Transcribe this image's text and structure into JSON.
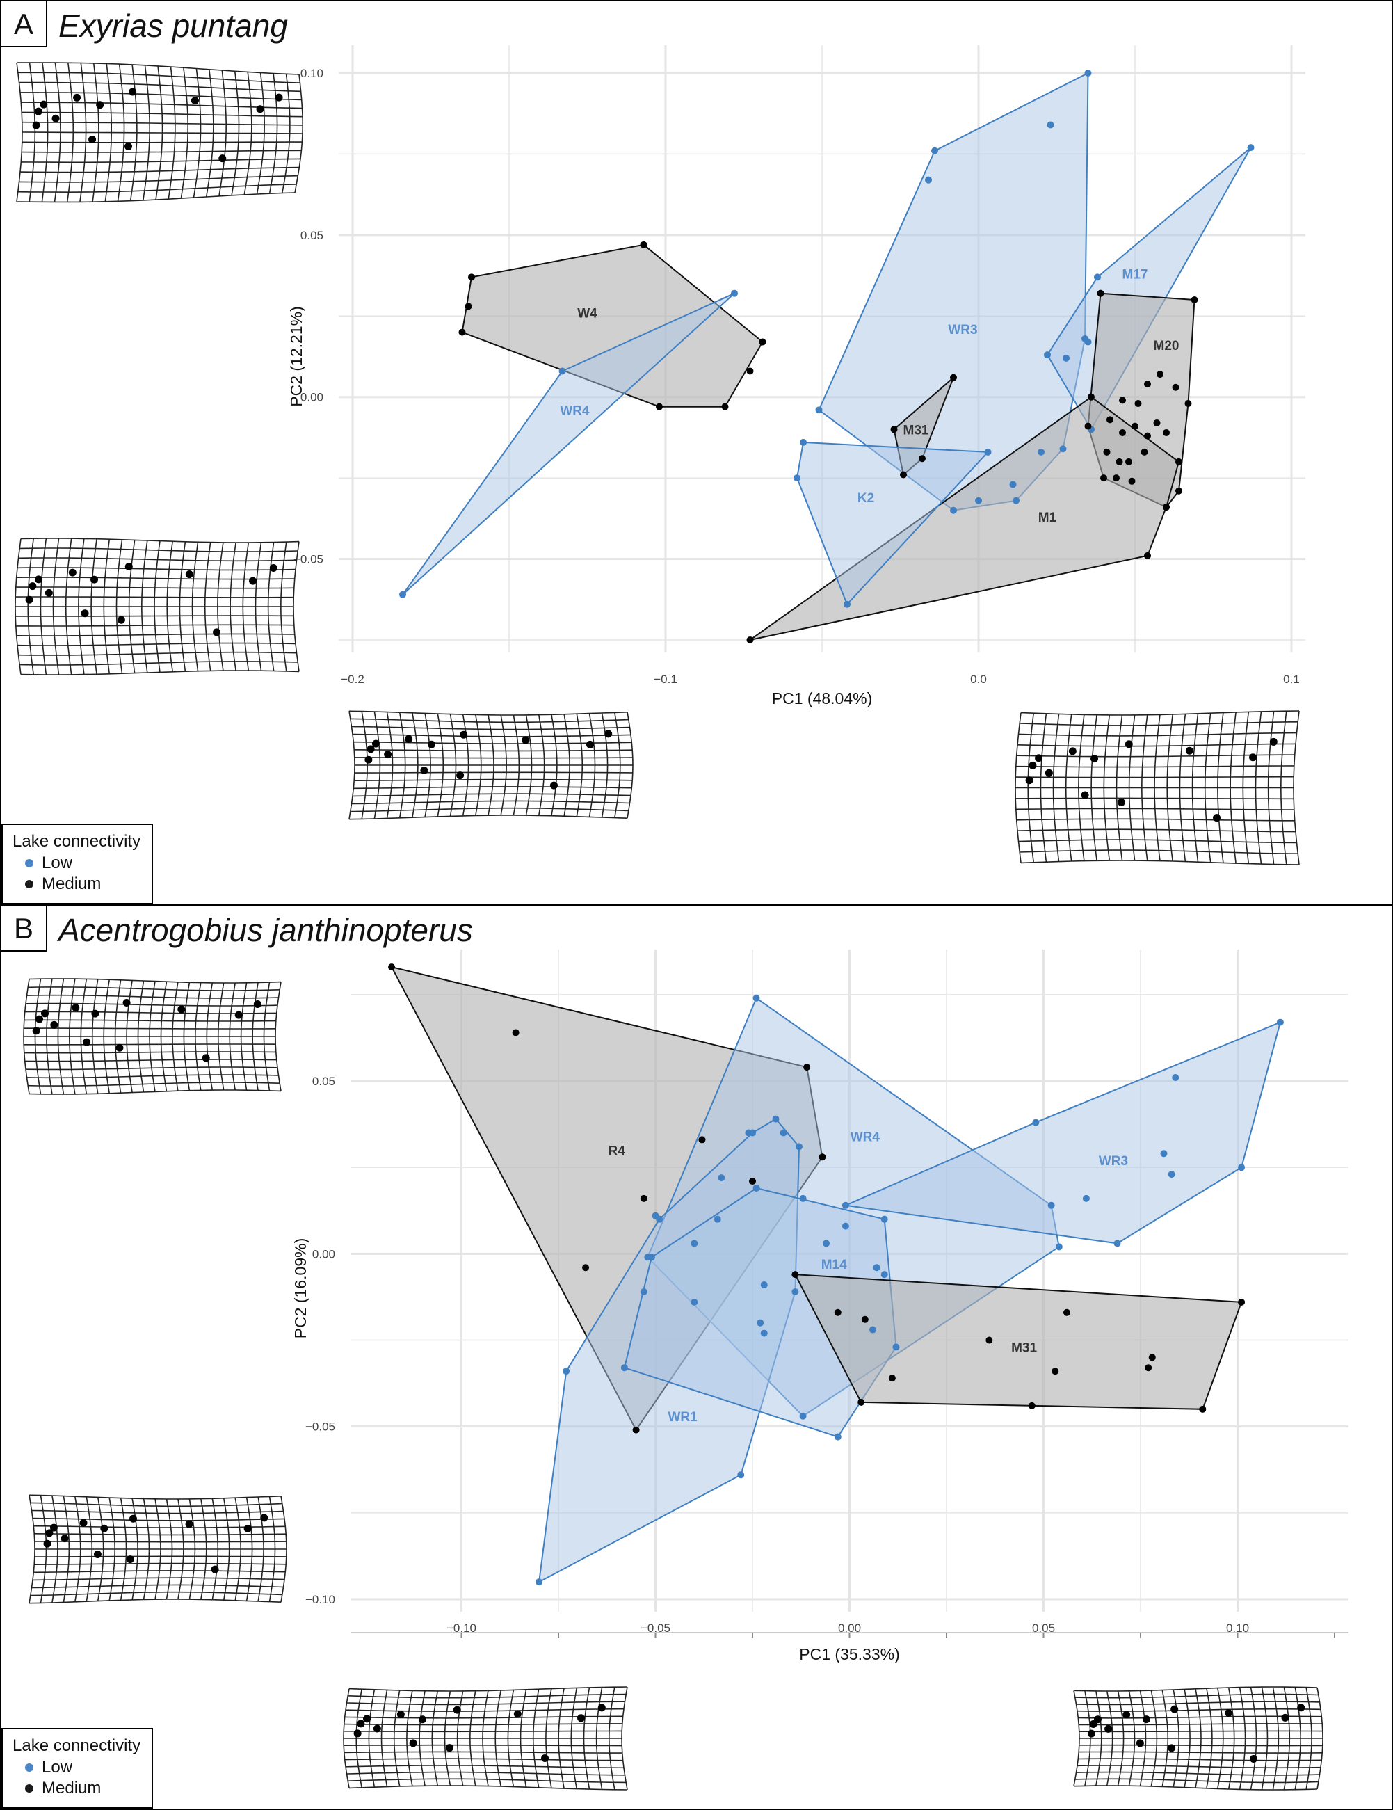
{
  "legend": {
    "title": "Lake connectivity",
    "items": [
      {
        "label": "Low",
        "color": "#4a86c5"
      },
      {
        "label": "Medium",
        "color": "#1a1a1a"
      }
    ]
  },
  "colors": {
    "low_fill": "#a9c6e6",
    "low_stroke": "#3f7fc2",
    "low_label": "#5b8fcd",
    "med_fill": "#b0b0b0",
    "med_stroke": "#111111",
    "med_label": "#333333",
    "grid": "#e5e5e5",
    "tick_text": "#444444"
  },
  "panels": [
    {
      "letter": "A",
      "species": "Exyrias puntang"
    },
    {
      "letter": "B",
      "species": "Acentrogobius janthinopterus"
    }
  ],
  "chart_data": [
    {
      "type": "scatter",
      "panel": "A",
      "title": "Exyrias puntang",
      "xlabel": "PC1 (48.04%)",
      "ylabel": "PC2 (12.21%)",
      "xlim": [
        -0.2,
        0.1
      ],
      "ylim": [
        -0.075,
        0.1
      ],
      "xticks": [
        -0.2,
        -0.1,
        0.0,
        0.1
      ],
      "xtick_labels": [
        "−0.2",
        "−0.1",
        "0.0",
        "0.1"
      ],
      "yticks": [
        -0.05,
        0.0,
        0.05,
        0.1
      ],
      "ytick_labels": [
        "−0.05",
        "0.00",
        "0.05",
        "0.10"
      ],
      "grid": true,
      "legend_position": "bottom-left",
      "groups": [
        {
          "name": "W4",
          "connectivity": "Medium",
          "label_at": [
            -0.125,
            0.026
          ],
          "hull": [
            [
              -0.107,
              0.047
            ],
            [
              -0.069,
              0.017
            ],
            [
              -0.081,
              -0.003
            ],
            [
              -0.102,
              -0.003
            ],
            [
              -0.165,
              0.02
            ],
            [
              -0.162,
              0.037
            ]
          ],
          "points": [
            [
              -0.107,
              0.047
            ],
            [
              -0.069,
              0.017
            ],
            [
              -0.081,
              -0.003
            ],
            [
              -0.102,
              -0.003
            ],
            [
              -0.165,
              0.02
            ],
            [
              -0.162,
              0.037
            ],
            [
              -0.163,
              0.028
            ],
            [
              -0.073,
              0.008
            ]
          ]
        },
        {
          "name": "WR4",
          "connectivity": "Low",
          "label_at": [
            -0.129,
            -0.004
          ],
          "hull": [
            [
              -0.078,
              0.032
            ],
            [
              -0.133,
              0.008
            ],
            [
              -0.184,
              -0.061
            ]
          ],
          "points": [
            [
              -0.078,
              0.032
            ],
            [
              -0.133,
              0.008
            ],
            [
              -0.184,
              -0.061
            ]
          ]
        },
        {
          "name": "WR3",
          "connectivity": "Low",
          "label_at": [
            -0.005,
            0.021
          ],
          "hull": [
            [
              0.035,
              0.1
            ],
            [
              0.034,
              0.018
            ],
            [
              0.027,
              -0.016
            ],
            [
              0.012,
              -0.032
            ],
            [
              -0.008,
              -0.035
            ],
            [
              -0.051,
              -0.004
            ],
            [
              -0.014,
              0.076
            ]
          ],
          "points": [
            [
              0.035,
              0.1
            ],
            [
              0.034,
              0.018
            ],
            [
              0.027,
              -0.016
            ],
            [
              0.012,
              -0.032
            ],
            [
              -0.008,
              -0.035
            ],
            [
              -0.051,
              -0.004
            ],
            [
              -0.014,
              0.076
            ],
            [
              0.023,
              0.084
            ],
            [
              -0.016,
              0.067
            ],
            [
              0.028,
              0.012
            ],
            [
              0.02,
              -0.017
            ],
            [
              0.011,
              -0.027
            ],
            [
              0.0,
              -0.032
            ]
          ]
        },
        {
          "name": "M17",
          "connectivity": "Low",
          "label_at": [
            0.05,
            0.038
          ],
          "hull": [
            [
              0.087,
              0.077
            ],
            [
              0.036,
              -0.01
            ],
            [
              0.022,
              0.013
            ],
            [
              0.038,
              0.037
            ]
          ],
          "points": [
            [
              0.087,
              0.077
            ],
            [
              0.036,
              -0.01
            ],
            [
              0.022,
              0.013
            ],
            [
              0.038,
              0.037
            ],
            [
              0.035,
              0.017
            ]
          ]
        },
        {
          "name": "M20",
          "connectivity": "Medium",
          "label_at": [
            0.06,
            0.016
          ],
          "hull": [
            [
              0.069,
              0.03
            ],
            [
              0.067,
              -0.002
            ],
            [
              0.064,
              -0.029
            ],
            [
              0.06,
              -0.034
            ],
            [
              0.04,
              -0.025
            ],
            [
              0.035,
              -0.009
            ],
            [
              0.039,
              0.032
            ]
          ],
          "points": [
            [
              0.069,
              0.03
            ],
            [
              0.067,
              -0.002
            ],
            [
              0.064,
              -0.029
            ],
            [
              0.06,
              -0.034
            ],
            [
              0.04,
              -0.025
            ],
            [
              0.035,
              -0.009
            ],
            [
              0.039,
              0.032
            ],
            [
              0.058,
              0.007
            ],
            [
              0.063,
              0.003
            ],
            [
              0.054,
              0.004
            ],
            [
              0.046,
              -0.001
            ],
            [
              0.051,
              -0.002
            ],
            [
              0.042,
              -0.007
            ],
            [
              0.057,
              -0.008
            ],
            [
              0.05,
              -0.009
            ],
            [
              0.046,
              -0.011
            ],
            [
              0.054,
              -0.012
            ],
            [
              0.06,
              -0.011
            ],
            [
              0.041,
              -0.017
            ],
            [
              0.045,
              -0.02
            ],
            [
              0.048,
              -0.02
            ],
            [
              0.053,
              -0.017
            ],
            [
              0.044,
              -0.025
            ],
            [
              0.049,
              -0.026
            ]
          ]
        },
        {
          "name": "M1",
          "connectivity": "Medium",
          "label_at": [
            0.022,
            -0.037
          ],
          "hull": [
            [
              0.036,
              0.0
            ],
            [
              0.064,
              -0.02
            ],
            [
              0.06,
              -0.034
            ],
            [
              0.054,
              -0.049
            ],
            [
              -0.073,
              -0.075
            ]
          ],
          "points": [
            [
              0.036,
              0.0
            ],
            [
              0.064,
              -0.02
            ],
            [
              0.06,
              -0.034
            ],
            [
              0.054,
              -0.049
            ],
            [
              -0.073,
              -0.075
            ]
          ]
        },
        {
          "name": "M31",
          "connectivity": "Medium",
          "label_at": [
            -0.02,
            -0.01
          ],
          "hull": [
            [
              -0.008,
              0.006
            ],
            [
              -0.018,
              -0.019
            ],
            [
              -0.024,
              -0.024
            ],
            [
              -0.027,
              -0.01
            ]
          ],
          "points": [
            [
              -0.008,
              0.006
            ],
            [
              -0.018,
              -0.019
            ],
            [
              -0.024,
              -0.024
            ],
            [
              -0.027,
              -0.01
            ]
          ]
        },
        {
          "name": "K2",
          "connectivity": "Low",
          "label_at": [
            -0.036,
            -0.031
          ],
          "hull": [
            [
              0.003,
              -0.017
            ],
            [
              -0.042,
              -0.064
            ],
            [
              -0.058,
              -0.025
            ],
            [
              -0.056,
              -0.014
            ]
          ],
          "points": [
            [
              0.003,
              -0.017
            ],
            [
              -0.042,
              -0.064
            ],
            [
              -0.058,
              -0.025
            ],
            [
              -0.056,
              -0.014
            ]
          ]
        }
      ]
    },
    {
      "type": "scatter",
      "panel": "B",
      "title": "Acentrogobius janthinopterus",
      "xlabel": "PC1 (35.33%)",
      "ylabel": "PC2 (16.09%)",
      "xlim": [
        -0.125,
        0.125
      ],
      "ylim": [
        -0.1,
        0.08
      ],
      "xticks": [
        -0.1,
        -0.05,
        0.0,
        0.05,
        0.1
      ],
      "xtick_labels": [
        "−0.10",
        "−0.05",
        "0.00",
        "0.05",
        "0.10"
      ],
      "yticks": [
        -0.1,
        -0.05,
        0.0,
        0.05
      ],
      "ytick_labels": [
        "−0.10",
        "−0.05",
        "0.00",
        "0.05"
      ],
      "grid": true,
      "legend_position": "bottom-left",
      "groups": [
        {
          "name": "R4",
          "connectivity": "Medium",
          "label_at": [
            -0.06,
            0.03
          ],
          "hull": [
            [
              -0.118,
              0.083
            ],
            [
              -0.011,
              0.054
            ],
            [
              -0.007,
              0.028
            ],
            [
              -0.055,
              -0.051
            ]
          ],
          "points": [
            [
              -0.118,
              0.083
            ],
            [
              -0.011,
              0.054
            ],
            [
              -0.007,
              0.028
            ],
            [
              -0.055,
              -0.051
            ],
            [
              -0.086,
              0.064
            ],
            [
              -0.053,
              0.016
            ],
            [
              -0.068,
              -0.004
            ],
            [
              -0.038,
              0.033
            ],
            [
              -0.025,
              0.021
            ]
          ]
        },
        {
          "name": "WR4",
          "connectivity": "Low",
          "label_at": [
            0.004,
            0.034
          ],
          "hull": [
            [
              -0.024,
              0.074
            ],
            [
              0.052,
              0.014
            ],
            [
              0.054,
              0.002
            ],
            [
              -0.012,
              -0.047
            ],
            [
              -0.052,
              -0.001
            ]
          ],
          "points": [
            [
              -0.024,
              0.074
            ],
            [
              0.052,
              0.014
            ],
            [
              0.054,
              0.002
            ],
            [
              -0.012,
              -0.047
            ],
            [
              -0.052,
              -0.001
            ],
            [
              -0.05,
              0.011
            ],
            [
              -0.04,
              0.003
            ],
            [
              -0.033,
              0.022
            ],
            [
              -0.034,
              0.01
            ],
            [
              -0.04,
              -0.014
            ],
            [
              -0.053,
              -0.011
            ],
            [
              -0.026,
              0.035
            ]
          ]
        },
        {
          "name": "WR3",
          "connectivity": "Low",
          "label_at": [
            0.068,
            0.027
          ],
          "hull": [
            [
              0.111,
              0.067
            ],
            [
              0.101,
              0.025
            ],
            [
              0.069,
              0.003
            ],
            [
              -0.001,
              0.014
            ],
            [
              0.048,
              0.038
            ]
          ],
          "points": [
            [
              0.111,
              0.067
            ],
            [
              0.101,
              0.025
            ],
            [
              0.069,
              0.003
            ],
            [
              -0.001,
              0.014
            ],
            [
              0.048,
              0.038
            ],
            [
              0.084,
              0.051
            ],
            [
              0.081,
              0.029
            ],
            [
              0.083,
              0.023
            ],
            [
              0.061,
              0.016
            ]
          ]
        },
        {
          "name": "WR1",
          "connectivity": "Low",
          "label_at": [
            -0.043,
            -0.047
          ],
          "hull": [
            [
              -0.019,
              0.039
            ],
            [
              -0.013,
              0.031
            ],
            [
              -0.014,
              -0.011
            ],
            [
              -0.028,
              -0.064
            ],
            [
              -0.08,
              -0.095
            ],
            [
              -0.073,
              -0.034
            ],
            [
              -0.049,
              0.01
            ],
            [
              -0.025,
              0.035
            ]
          ],
          "points": [
            [
              -0.019,
              0.039
            ],
            [
              -0.013,
              0.031
            ],
            [
              -0.014,
              -0.011
            ],
            [
              -0.028,
              -0.064
            ],
            [
              -0.08,
              -0.095
            ],
            [
              -0.073,
              -0.034
            ],
            [
              -0.049,
              0.01
            ],
            [
              -0.025,
              0.035
            ],
            [
              -0.017,
              0.035
            ],
            [
              -0.022,
              -0.009
            ],
            [
              -0.023,
              -0.02
            ],
            [
              -0.022,
              -0.023
            ]
          ]
        },
        {
          "name": "M14",
          "connectivity": "Low",
          "label_at": [
            -0.004,
            -0.003
          ],
          "hull": [
            [
              -0.024,
              0.019
            ],
            [
              0.009,
              0.01
            ],
            [
              0.012,
              -0.027
            ],
            [
              -0.003,
              -0.053
            ],
            [
              -0.058,
              -0.033
            ],
            [
              -0.051,
              -0.001
            ]
          ],
          "points": [
            [
              -0.024,
              0.019
            ],
            [
              0.009,
              0.01
            ],
            [
              0.012,
              -0.027
            ],
            [
              -0.003,
              -0.053
            ],
            [
              -0.058,
              -0.033
            ],
            [
              -0.051,
              -0.001
            ],
            [
              -0.006,
              0.003
            ],
            [
              -0.001,
              0.008
            ],
            [
              0.007,
              -0.004
            ],
            [
              0.009,
              -0.006
            ],
            [
              0.006,
              -0.022
            ],
            [
              -0.012,
              0.016
            ]
          ]
        },
        {
          "name": "M31",
          "connectivity": "Medium",
          "label_at": [
            0.045,
            -0.027
          ],
          "hull": [
            [
              0.101,
              -0.014
            ],
            [
              0.091,
              -0.045
            ],
            [
              0.003,
              -0.043
            ],
            [
              -0.014,
              -0.006
            ]
          ],
          "points": [
            [
              0.101,
              -0.014
            ],
            [
              0.091,
              -0.045
            ],
            [
              0.003,
              -0.043
            ],
            [
              -0.014,
              -0.006
            ],
            [
              0.056,
              -0.017
            ],
            [
              0.036,
              -0.025
            ],
            [
              0.053,
              -0.034
            ],
            [
              0.047,
              -0.044
            ],
            [
              0.077,
              -0.033
            ],
            [
              0.078,
              -0.03
            ],
            [
              0.011,
              -0.036
            ],
            [
              0.004,
              -0.019
            ],
            [
              -0.003,
              -0.017
            ]
          ]
        }
      ]
    }
  ]
}
